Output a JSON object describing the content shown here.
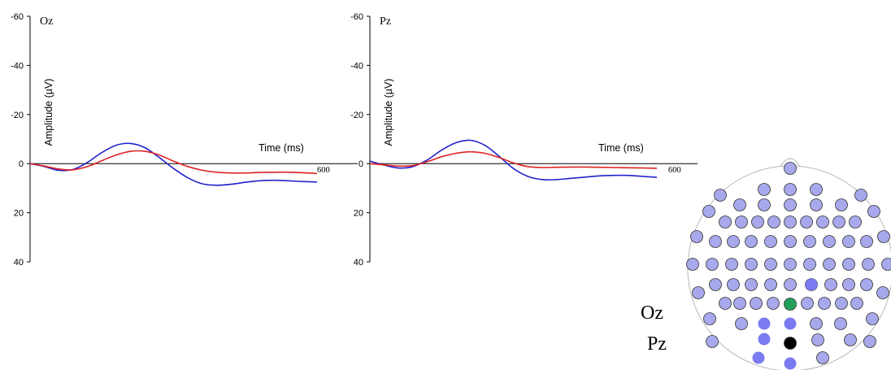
{
  "chart_data": [
    {
      "type": "line",
      "title": "Oz",
      "xlabel": "Time (ms)",
      "ylabel": "Amplitude (µV)",
      "xlim": [
        0,
        600
      ],
      "ylim": [
        -60,
        40
      ],
      "y_inverted": true,
      "yticks": [
        -60,
        -40,
        -20,
        0,
        20,
        40
      ],
      "x_end_label": "600",
      "series": [
        {
          "color": "#2222cc",
          "x": [
            0,
            30,
            60,
            90,
            120,
            150,
            180,
            210,
            240,
            270,
            300,
            330,
            360,
            390,
            420,
            450,
            480,
            510,
            540,
            570,
            600
          ],
          "y": [
            0,
            1.2,
            2.7,
            2.4,
            -0.5,
            -4.5,
            -7.5,
            -8.2,
            -6.5,
            -2.5,
            2.0,
            5.8,
            8.2,
            8.8,
            8.4,
            7.6,
            7.0,
            6.8,
            7.0,
            7.3,
            7.5
          ]
        },
        {
          "color": "#dd2222",
          "x": [
            0,
            30,
            60,
            90,
            120,
            150,
            180,
            210,
            240,
            270,
            300,
            330,
            360,
            390,
            420,
            450,
            480,
            510,
            540,
            570,
            600
          ],
          "y": [
            0,
            1.0,
            2.2,
            2.5,
            1.2,
            -1.2,
            -3.5,
            -5.0,
            -5.0,
            -3.5,
            -1.0,
            1.2,
            2.7,
            3.5,
            3.8,
            3.8,
            3.6,
            3.5,
            3.5,
            3.7,
            4.0
          ]
        }
      ]
    },
    {
      "type": "line",
      "title": "Pz",
      "xlabel": "Time (ms)",
      "ylabel": "Amplitude (µV)",
      "xlim": [
        0,
        600
      ],
      "ylim": [
        -60,
        40
      ],
      "y_inverted": true,
      "yticks": [
        -60,
        -40,
        -20,
        0,
        20,
        40
      ],
      "x_end_label": "600",
      "series": [
        {
          "color": "#2222cc",
          "x": [
            0,
            30,
            60,
            90,
            120,
            150,
            180,
            210,
            240,
            270,
            300,
            330,
            360,
            390,
            420,
            450,
            480,
            510,
            540,
            570,
            600
          ],
          "y": [
            -1.0,
            0.6,
            1.8,
            1.2,
            -1.5,
            -5.5,
            -8.5,
            -9.5,
            -7.5,
            -3.0,
            2.0,
            5.2,
            6.5,
            6.5,
            6.0,
            5.5,
            5.0,
            4.8,
            4.8,
            5.2,
            5.6
          ]
        },
        {
          "color": "#dd2222",
          "x": [
            0,
            30,
            60,
            90,
            120,
            150,
            180,
            210,
            240,
            270,
            300,
            330,
            360,
            390,
            420,
            450,
            480,
            510,
            540,
            570,
            600
          ],
          "y": [
            0,
            0.5,
            1.0,
            0.8,
            -0.8,
            -2.8,
            -4.2,
            -4.8,
            -4.2,
            -2.5,
            -0.3,
            1.2,
            1.6,
            1.5,
            1.4,
            1.4,
            1.5,
            1.6,
            1.7,
            1.8,
            1.9
          ]
        }
      ]
    }
  ],
  "topomap": {
    "electrode_color": "#a8a8ec",
    "electrode_outline": "#333333",
    "highlight_blue": "#7b7bf0",
    "oz_color": "#22a05a",
    "pz_color": "#000000",
    "legend": [
      {
        "label": "Oz",
        "color": "#22a05a"
      },
      {
        "label": "Pz",
        "color": "#000000"
      }
    ]
  }
}
